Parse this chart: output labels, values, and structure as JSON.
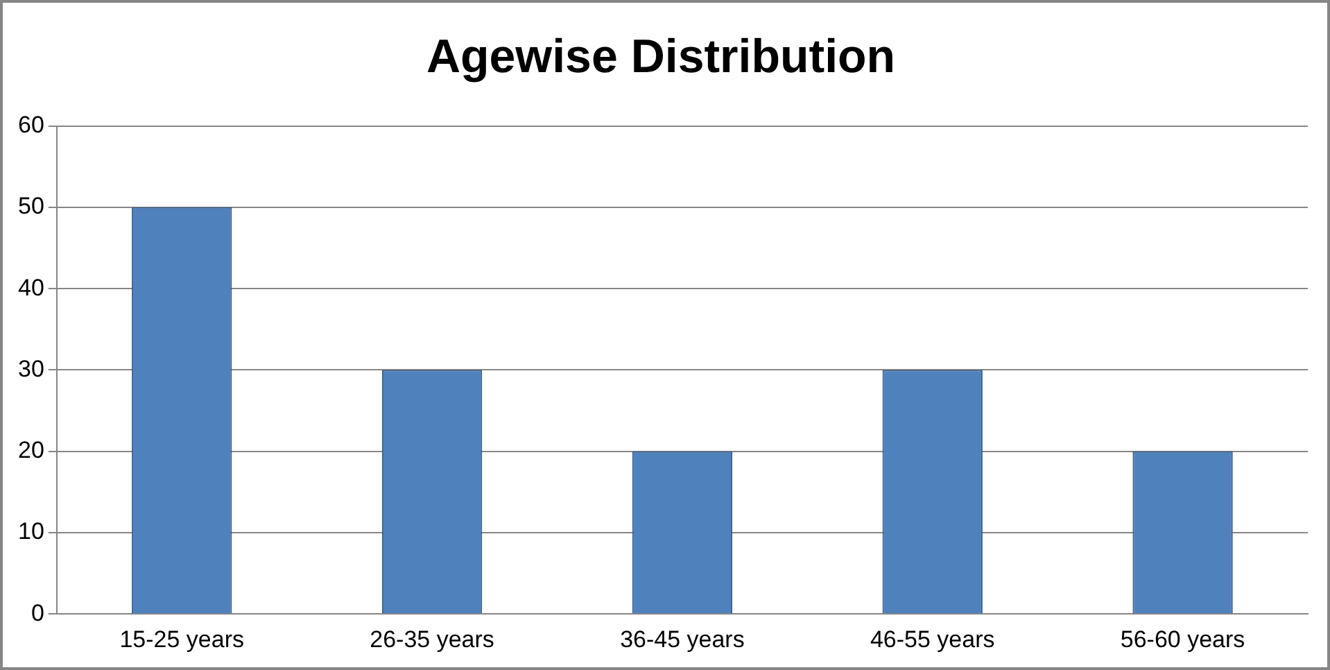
{
  "chart_data": {
    "type": "bar",
    "title": "Agewise Distribution",
    "categories": [
      "15-25 years",
      "26-35 years",
      "36-45 years",
      "46-55 years",
      "56-60 years"
    ],
    "values": [
      50,
      30,
      20,
      30,
      20
    ],
    "color": "#4f81bd",
    "ylim": [
      0,
      60
    ],
    "yticks": [
      0,
      10,
      20,
      30,
      40,
      50,
      60
    ],
    "grid": "y",
    "legend": false
  }
}
